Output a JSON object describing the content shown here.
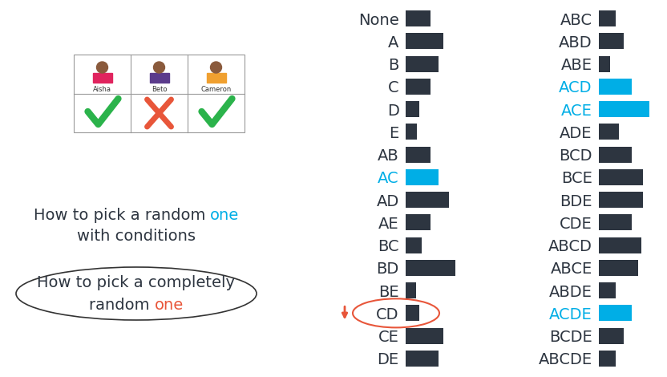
{
  "table": {
    "names": [
      "Aisha",
      "Beto",
      "Cameron"
    ],
    "selected": [
      true,
      false,
      true
    ]
  },
  "texts": [
    {
      "lines": [
        [
          {
            "text": "How to pick a random ",
            "color": "#2d3540"
          },
          {
            "text": "one",
            "color": "#00aee6"
          }
        ],
        [
          {
            "text": "with conditions",
            "color": "#2d3540"
          }
        ]
      ]
    },
    {
      "lines": [
        [
          {
            "text": "How to pick a completely",
            "color": "#2d3540"
          }
        ],
        [
          {
            "text": "random ",
            "color": "#2d3540"
          },
          {
            "text": "one",
            "color": "#e8563a"
          }
        ]
      ]
    }
  ],
  "circled_category": "CD",
  "chart_data": [
    {
      "type": "bar",
      "orientation": "horizontal",
      "tick_labels": "y",
      "xlim": [
        0,
        70
      ],
      "categories": [
        "None",
        "A",
        "B",
        "C",
        "D",
        "E",
        "AB",
        "AC",
        "AD",
        "AE",
        "BC",
        "BD",
        "BE",
        "CD",
        "CE",
        "DE"
      ],
      "values": [
        31,
        47,
        41,
        31,
        17,
        14,
        31,
        41,
        54,
        31,
        20,
        62,
        13,
        17,
        47,
        41
      ],
      "colors": [
        "#2d3540",
        "#2d3540",
        "#2d3540",
        "#2d3540",
        "#2d3540",
        "#2d3540",
        "#2d3540",
        "#00aee6",
        "#2d3540",
        "#2d3540",
        "#2d3540",
        "#2d3540",
        "#2d3540",
        "#2d3540",
        "#2d3540",
        "#2d3540"
      ]
    },
    {
      "type": "bar",
      "orientation": "horizontal",
      "tick_labels": "y",
      "xlim": [
        0,
        70
      ],
      "categories": [
        "ABC",
        "ABD",
        "ABE",
        "ACD",
        "ACE",
        "ADE",
        "BCD",
        "BCE",
        "BDE",
        "CDE",
        "ABCD",
        "ABCE",
        "ABDE",
        "ACDE",
        "BCDE",
        "ABCDE"
      ],
      "values": [
        21,
        31,
        14,
        41,
        63,
        25,
        41,
        55,
        55,
        41,
        53,
        49,
        21,
        41,
        31,
        21
      ],
      "colors": [
        "#2d3540",
        "#2d3540",
        "#2d3540",
        "#00aee6",
        "#00aee6",
        "#2d3540",
        "#2d3540",
        "#2d3540",
        "#2d3540",
        "#2d3540",
        "#2d3540",
        "#2d3540",
        "#2d3540",
        "#00aee6",
        "#2d3540",
        "#2d3540"
      ]
    }
  ]
}
